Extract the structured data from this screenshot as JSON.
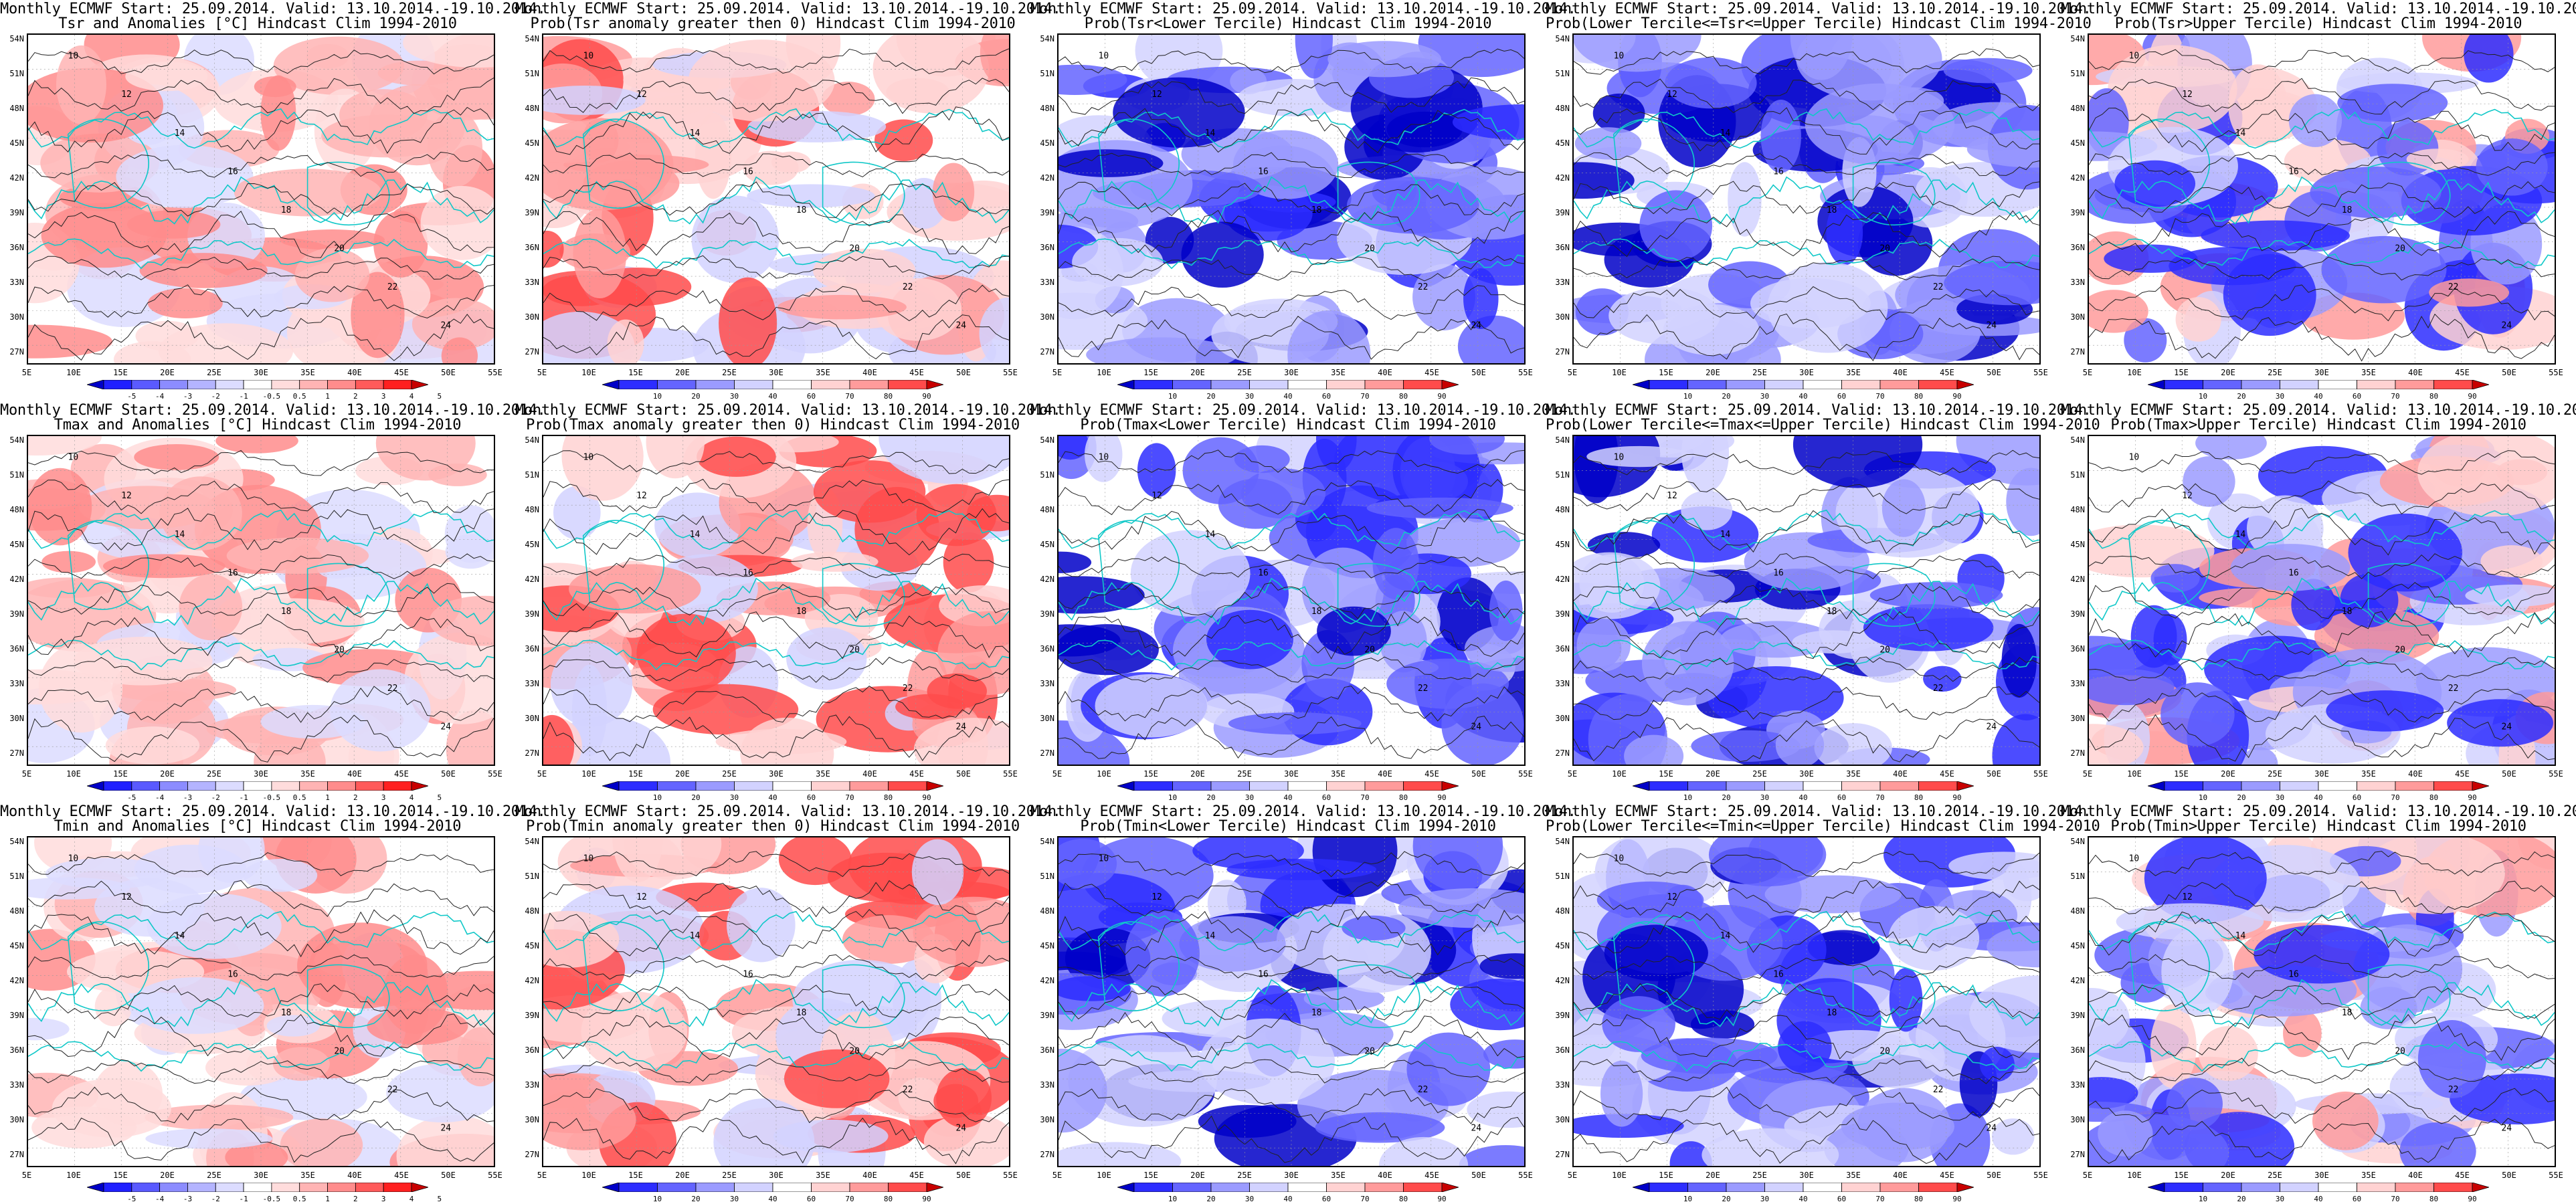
{
  "header_line": "Monthly ECMWF Start: 25.09.2014. Valid: 13.10.2014.-19.10.2014.",
  "lat_labels": [
    "54N",
    "51N",
    "48N",
    "45N",
    "42N",
    "39N",
    "36N",
    "33N",
    "30N",
    "27N"
  ],
  "lon_labels": [
    "5E",
    "10E",
    "15E",
    "20E",
    "25E",
    "30E",
    "35E",
    "40E",
    "45E",
    "50E",
    "55E"
  ],
  "colorbars": {
    "anomaly": {
      "labels": [
        "-5",
        "-4",
        "-3",
        "-2",
        "-1",
        "-0.5",
        "0.5",
        "1",
        "2",
        "3",
        "4",
        "5"
      ],
      "colors": [
        "#0000c8",
        "#2020ff",
        "#5a5aff",
        "#8c8cff",
        "#b4b4ff",
        "#dcdcff",
        "#ffffff",
        "#ffdcdc",
        "#ffb4b4",
        "#ff8c8c",
        "#ff5a5a",
        "#ff2020",
        "#c80000"
      ]
    },
    "probability": {
      "labels": [
        "10",
        "20",
        "30",
        "40",
        "60",
        "70",
        "80",
        "90"
      ],
      "colors": [
        "#0000c8",
        "#2d2dff",
        "#6464ff",
        "#9b9bff",
        "#d2d2ff",
        "#ffffff",
        "#ffd2d2",
        "#ff9b9b",
        "#ff4b4b",
        "#c80000"
      ]
    }
  },
  "panels": [
    {
      "title2": "Tsr and Anomalies [°C] Hindcast Clim 1994-2010",
      "scheme": "anomaly",
      "bias": "warm"
    },
    {
      "title2": "Prob(Tsr anomaly greater then 0) Hindcast Clim 1994-2010",
      "scheme": "probability",
      "bias": "warm"
    },
    {
      "title2": "Prob(Tsr<Lower Tercile) Hindcast Clim 1994-2010",
      "scheme": "probability",
      "bias": "cold-strong"
    },
    {
      "title2": "Prob(Lower Tercile<=Tsr<=Upper Tercile) Hindcast Clim 1994-2010",
      "scheme": "probability",
      "bias": "cold"
    },
    {
      "title2": "Prob(Tsr>Upper Tercile) Hindcast Clim 1994-2010",
      "scheme": "probability",
      "bias": "mixed"
    },
    {
      "title2": "Tmax and Anomalies [°C] Hindcast Clim 1994-2010",
      "scheme": "anomaly",
      "bias": "warm"
    },
    {
      "title2": "Prob(Tmax anomaly greater then 0) Hindcast Clim 1994-2010",
      "scheme": "probability",
      "bias": "warm"
    },
    {
      "title2": "Prob(Tmax<Lower Tercile) Hindcast Clim 1994-2010",
      "scheme": "probability",
      "bias": "cold-strong"
    },
    {
      "title2": "Prob(Lower Tercile<=Tmax<=Upper Tercile) Hindcast Clim 1994-2010",
      "scheme": "probability",
      "bias": "cold"
    },
    {
      "title2": "Prob(Tmax>Upper Tercile) Hindcast Clim 1994-2010",
      "scheme": "probability",
      "bias": "mixed"
    },
    {
      "title2": "Tmin and Anomalies [°C] Hindcast Clim 1994-2010",
      "scheme": "anomaly",
      "bias": "warm"
    },
    {
      "title2": "Prob(Tmin anomaly greater then 0) Hindcast Clim 1994-2010",
      "scheme": "probability",
      "bias": "warm"
    },
    {
      "title2": "Prob(Tmin<Lower Tercile) Hindcast Clim 1994-2010",
      "scheme": "probability",
      "bias": "cold-strong"
    },
    {
      "title2": "Prob(Lower Tercile<=Tmin<=Upper Tercile) Hindcast Clim 1994-2010",
      "scheme": "probability",
      "bias": "cold"
    },
    {
      "title2": "Prob(Tmin>Upper Tercile) Hindcast Clim 1994-2010",
      "scheme": "probability",
      "bias": "mixed"
    }
  ],
  "contour_labels": [
    "10",
    "12",
    "14",
    "16",
    "18",
    "20",
    "22",
    "24"
  ]
}
